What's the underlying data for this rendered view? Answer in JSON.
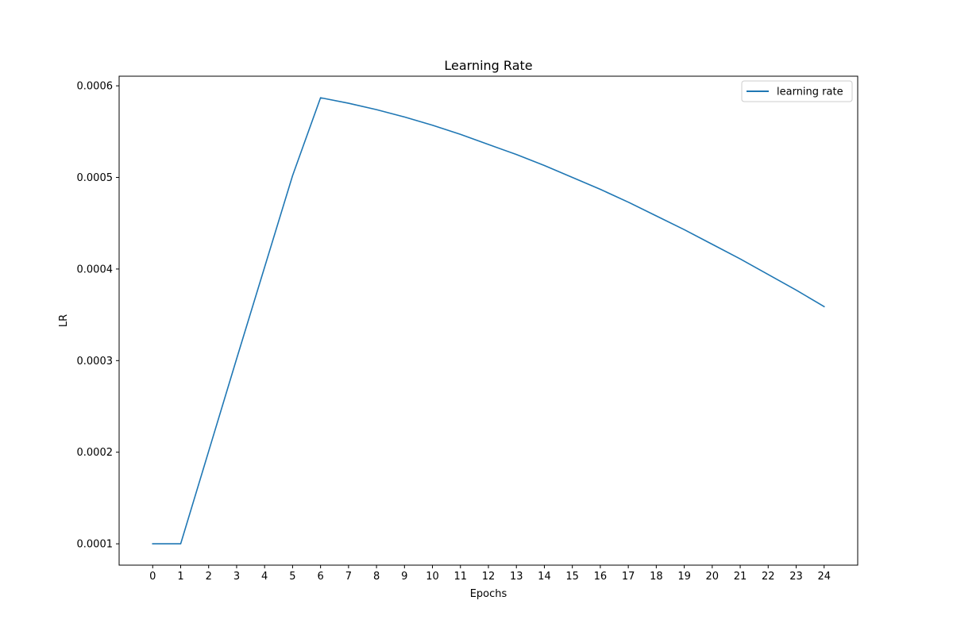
{
  "chart_data": {
    "type": "line",
    "title": "Learning Rate",
    "xlabel": "Epochs",
    "ylabel": "LR",
    "xlim": [
      -1.2,
      25.2
    ],
    "ylim": [
      7.67e-05,
      0.0006105
    ],
    "x_ticks": [
      0,
      1,
      2,
      3,
      4,
      5,
      6,
      7,
      8,
      9,
      10,
      11,
      12,
      13,
      14,
      15,
      16,
      17,
      18,
      19,
      20,
      21,
      22,
      23,
      24
    ],
    "y_ticks": [
      0.0001,
      0.0002,
      0.0003,
      0.0004,
      0.0005,
      0.0006
    ],
    "y_tick_labels": [
      "0.0001",
      "0.0002",
      "0.0003",
      "0.0004",
      "0.0005",
      "0.0006"
    ],
    "grid": false,
    "legend_position": "top-right",
    "series": [
      {
        "name": "learning rate",
        "color": "#1f77b4",
        "x": [
          0,
          1,
          2,
          3,
          4,
          5,
          6,
          7,
          8,
          9,
          10,
          11,
          12,
          13,
          14,
          15,
          16,
          17,
          18,
          19,
          20,
          21,
          22,
          23,
          24
        ],
        "values": [
          0.0001,
          0.0001,
          0.000201,
          0.000302,
          0.000402,
          0.000502,
          0.000587,
          0.000581,
          0.000574,
          0.000566,
          0.000557,
          0.000547,
          0.000536,
          0.000525,
          0.000513,
          0.0005,
          0.000487,
          0.000473,
          0.000458,
          0.000443,
          0.000427,
          0.000411,
          0.000394,
          0.000377,
          0.000359
        ]
      }
    ]
  }
}
